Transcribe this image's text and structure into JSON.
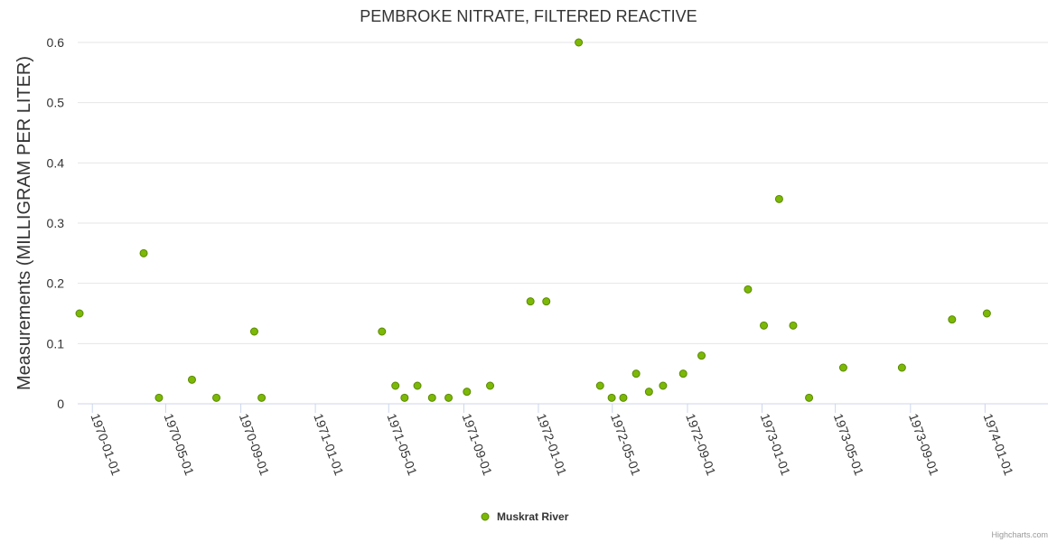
{
  "chart_data": {
    "type": "scatter",
    "title": "PEMBROKE NITRATE, FILTERED REACTIVE",
    "xlabel": "",
    "ylabel": "Measurements (MILLIGRAM PER LITER)",
    "ylim": [
      0,
      0.6
    ],
    "yticks": [
      "0",
      "0.1",
      "0.2",
      "0.3",
      "0.4",
      "0.5",
      "0.6"
    ],
    "xlim": [
      "1969-12-08",
      "1974-04-14"
    ],
    "xticks": [
      "1970-01-01",
      "1970-05-01",
      "1970-09-01",
      "1971-01-01",
      "1971-05-01",
      "1971-09-01",
      "1972-01-01",
      "1972-05-01",
      "1972-09-01",
      "1973-01-01",
      "1973-05-01",
      "1973-09-01",
      "1974-01-01"
    ],
    "grid": true,
    "legend_position": "bottom-center",
    "series": [
      {
        "name": "Muskrat River",
        "color": "#7cb806",
        "points": [
          {
            "x": "1969-12-11",
            "y": 0.15
          },
          {
            "x": "1970-03-26",
            "y": 0.25
          },
          {
            "x": "1970-04-20",
            "y": 0.01
          },
          {
            "x": "1970-06-13",
            "y": 0.04
          },
          {
            "x": "1970-07-23",
            "y": 0.01
          },
          {
            "x": "1970-09-23",
            "y": 0.12
          },
          {
            "x": "1970-10-05",
            "y": 0.01
          },
          {
            "x": "1971-04-20",
            "y": 0.12
          },
          {
            "x": "1971-05-12",
            "y": 0.03
          },
          {
            "x": "1971-05-27",
            "y": 0.01
          },
          {
            "x": "1971-06-17",
            "y": 0.03
          },
          {
            "x": "1971-07-11",
            "y": 0.01
          },
          {
            "x": "1971-08-07",
            "y": 0.01
          },
          {
            "x": "1971-09-06",
            "y": 0.02
          },
          {
            "x": "1971-10-14",
            "y": 0.03
          },
          {
            "x": "1971-12-19",
            "y": 0.17
          },
          {
            "x": "1972-01-14",
            "y": 0.17
          },
          {
            "x": "1972-03-07",
            "y": 0.6
          },
          {
            "x": "1972-04-11",
            "y": 0.03
          },
          {
            "x": "1972-04-30",
            "y": 0.01
          },
          {
            "x": "1972-05-19",
            "y": 0.01
          },
          {
            "x": "1972-06-09",
            "y": 0.05
          },
          {
            "x": "1972-06-30",
            "y": 0.02
          },
          {
            "x": "1972-07-23",
            "y": 0.03
          },
          {
            "x": "1972-08-25",
            "y": 0.05
          },
          {
            "x": "1972-09-24",
            "y": 0.08
          },
          {
            "x": "1972-12-09",
            "y": 0.19
          },
          {
            "x": "1973-01-04",
            "y": 0.13
          },
          {
            "x": "1973-01-29",
            "y": 0.34
          },
          {
            "x": "1973-02-21",
            "y": 0.13
          },
          {
            "x": "1973-03-19",
            "y": 0.01
          },
          {
            "x": "1973-05-14",
            "y": 0.06
          },
          {
            "x": "1973-08-18",
            "y": 0.06
          },
          {
            "x": "1973-11-08",
            "y": 0.14
          },
          {
            "x": "1974-01-04",
            "y": 0.15
          }
        ]
      }
    ]
  },
  "credits": "Highcharts.com"
}
